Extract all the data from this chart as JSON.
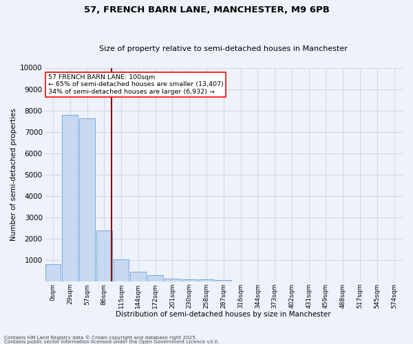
{
  "title": "57, FRENCH BARN LANE, MANCHESTER, M9 6PB",
  "subtitle": "Size of property relative to semi-detached houses in Manchester",
  "xlabel": "Distribution of semi-detached houses by size in Manchester",
  "ylabel": "Number of semi-detached properties",
  "bar_labels": [
    "0sqm",
    "29sqm",
    "57sqm",
    "86sqm",
    "115sqm",
    "144sqm",
    "172sqm",
    "201sqm",
    "230sqm",
    "258sqm",
    "287sqm",
    "316sqm",
    "344sqm",
    "373sqm",
    "402sqm",
    "431sqm",
    "459sqm",
    "488sqm",
    "517sqm",
    "545sqm",
    "574sqm"
  ],
  "bar_values": [
    800,
    7800,
    7650,
    2380,
    1030,
    450,
    290,
    150,
    110,
    90,
    60,
    20,
    0,
    0,
    0,
    0,
    0,
    0,
    0,
    0,
    0
  ],
  "bar_color": "#c7d9f0",
  "bar_edgecolor": "#6a9fd8",
  "annotation_text_line1": "57 FRENCH BARN LANE: 100sqm",
  "annotation_text_line2": "← 65% of semi-detached houses are smaller (13,407)",
  "annotation_text_line3": "34% of semi-detached houses are larger (6,932) →",
  "vline_color": "#8b0000",
  "vline_x": 3.45,
  "ylim": [
    0,
    10000
  ],
  "yticks": [
    0,
    1000,
    2000,
    3000,
    4000,
    5000,
    6000,
    7000,
    8000,
    9000,
    10000
  ],
  "grid_color": "#d0d8e8",
  "background_color": "#eef2fa",
  "footer_line1": "Contains HM Land Registry data © Crown copyright and database right 2025.",
  "footer_line2": "Contains public sector information licensed under the Open Government Licence v3.0."
}
